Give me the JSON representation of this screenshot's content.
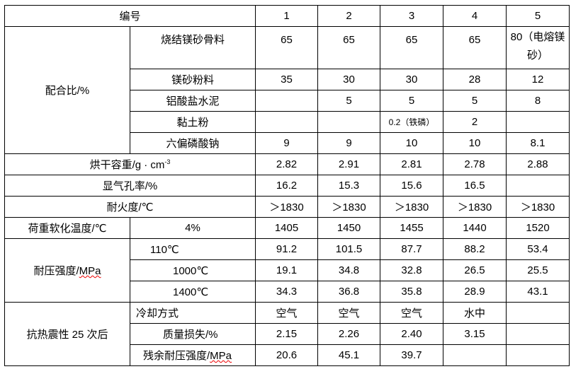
{
  "header": {
    "label": "编号",
    "cols": [
      "1",
      "2",
      "3",
      "4",
      "5"
    ]
  },
  "mix": {
    "group": "配合比/%",
    "rows": [
      {
        "label": "烧结镁砂骨料",
        "values": [
          "65",
          "65",
          "65",
          "65",
          "80（电熔镁砂）"
        ]
      },
      {
        "label": "镁砂粉料",
        "values": [
          "35",
          "30",
          "30",
          "28",
          "12"
        ]
      },
      {
        "label": "铝酸盐水泥",
        "values": [
          "",
          "5",
          "5",
          "5",
          "8"
        ]
      },
      {
        "label": "黏土粉",
        "values": [
          "",
          "",
          "0.2（铁磷）",
          "2",
          ""
        ]
      },
      {
        "label": "六偏磷酸钠",
        "values": [
          "9",
          "9",
          "10",
          "10",
          "8.1"
        ]
      }
    ]
  },
  "density": {
    "label": "烘干容重/g · cm",
    "sup": "-3",
    "values": [
      "2.82",
      "2.91",
      "2.81",
      "2.78",
      "2.88"
    ]
  },
  "porosity": {
    "label": "显气孔率/%",
    "values": [
      "16.2",
      "15.3",
      "15.6",
      "16.5",
      ""
    ]
  },
  "refractoriness": {
    "label": "耐火度/℃",
    "values": [
      "＞1830",
      "＞1830",
      "＞1830",
      "＞1830",
      "＞1830"
    ]
  },
  "softening": {
    "label": "荷重软化温度/℃",
    "sub": "4%",
    "values": [
      "1405",
      "1450",
      "1455",
      "1440",
      "1520"
    ]
  },
  "strength": {
    "group_prefix": "耐压强度/",
    "group_unit": "MPa",
    "rows": [
      {
        "label": "110℃",
        "values": [
          "91.2",
          "101.5",
          "87.7",
          "88.2",
          "53.4"
        ]
      },
      {
        "label": "1000℃",
        "values": [
          "19.1",
          "34.8",
          "32.8",
          "26.5",
          "25.5"
        ]
      },
      {
        "label": "1400℃",
        "values": [
          "34.3",
          "36.8",
          "35.8",
          "28.9",
          "43.1"
        ]
      }
    ]
  },
  "thermal_shock": {
    "group": "抗热震性 25 次后",
    "rows": [
      {
        "label": "冷却方式",
        "values": [
          "空气",
          "空气",
          "空气",
          "水中",
          ""
        ]
      },
      {
        "label": "质量损失/%",
        "values": [
          "2.15",
          "2.26",
          "2.40",
          "3.15",
          ""
        ]
      },
      {
        "label_prefix": "残余耐压强度/",
        "label_unit": "MPa",
        "values": [
          "20.6",
          "45.1",
          "39.7",
          "",
          ""
        ]
      }
    ]
  }
}
